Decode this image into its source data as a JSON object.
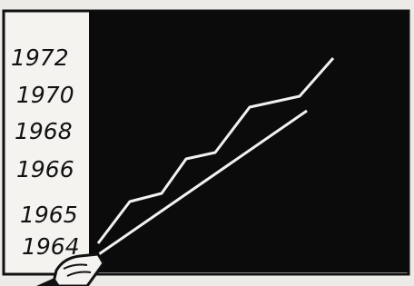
{
  "labels": [
    "1972",
    "1970",
    "1968",
    "1966",
    "1965",
    "1964"
  ]
}
